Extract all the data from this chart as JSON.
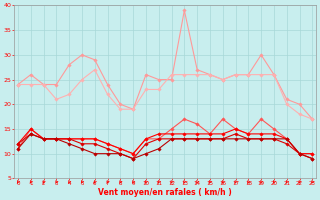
{
  "x": [
    0,
    1,
    2,
    3,
    4,
    5,
    6,
    7,
    8,
    9,
    10,
    11,
    12,
    13,
    14,
    15,
    16,
    17,
    18,
    19,
    20,
    21,
    22,
    23
  ],
  "series": [
    {
      "color": "#FF9999",
      "lw": 0.8,
      "marker": "D",
      "ms": 1.8,
      "values": [
        24,
        26,
        24,
        24,
        28,
        30,
        29,
        24,
        20,
        19,
        26,
        25,
        25,
        39,
        27,
        26,
        25,
        26,
        26,
        30,
        26,
        21,
        20,
        17
      ]
    },
    {
      "color": "#FFB0B0",
      "lw": 0.8,
      "marker": "D",
      "ms": 1.8,
      "values": [
        24,
        24,
        24,
        21,
        22,
        25,
        27,
        22,
        19,
        19,
        23,
        23,
        26,
        26,
        26,
        26,
        25,
        26,
        26,
        26,
        26,
        20,
        18,
        17
      ]
    },
    {
      "color": "#FF5555",
      "lw": 0.8,
      "marker": "D",
      "ms": 1.8,
      "values": [
        11,
        15,
        13,
        13,
        13,
        13,
        13,
        12,
        11,
        10,
        13,
        13,
        15,
        17,
        16,
        14,
        17,
        15,
        14,
        17,
        15,
        13,
        10,
        10
      ]
    },
    {
      "color": "#FF0000",
      "lw": 0.8,
      "marker": "D",
      "ms": 1.8,
      "values": [
        12,
        15,
        13,
        13,
        13,
        13,
        13,
        12,
        11,
        10,
        13,
        14,
        14,
        14,
        14,
        14,
        14,
        15,
        14,
        14,
        14,
        13,
        10,
        10
      ]
    },
    {
      "color": "#DD0000",
      "lw": 0.8,
      "marker": "D",
      "ms": 1.8,
      "values": [
        12,
        14,
        13,
        13,
        13,
        12,
        12,
        11,
        10,
        9,
        12,
        13,
        13,
        13,
        13,
        13,
        13,
        14,
        13,
        13,
        13,
        12,
        10,
        9
      ]
    },
    {
      "color": "#BB0000",
      "lw": 0.8,
      "marker": "D",
      "ms": 1.8,
      "values": [
        11,
        14,
        13,
        13,
        12,
        11,
        10,
        10,
        10,
        9,
        10,
        11,
        13,
        13,
        13,
        13,
        13,
        13,
        13,
        13,
        13,
        13,
        10,
        9
      ]
    }
  ],
  "xlabel": "Vent moyen/en rafales ( km/h )",
  "xlim": [
    0,
    23
  ],
  "ylim": [
    5,
    40
  ],
  "yticks": [
    5,
    10,
    15,
    20,
    25,
    30,
    35,
    40
  ],
  "xticks": [
    0,
    1,
    2,
    3,
    4,
    5,
    6,
    7,
    8,
    9,
    10,
    11,
    12,
    13,
    14,
    15,
    16,
    17,
    18,
    19,
    20,
    21,
    22,
    23
  ],
  "bg_color": "#C8EEEE",
  "grid_color": "#A8D8D8",
  "tick_color": "#FF0000",
  "label_color": "#FF0000",
  "arrow_color": "#FF0000"
}
